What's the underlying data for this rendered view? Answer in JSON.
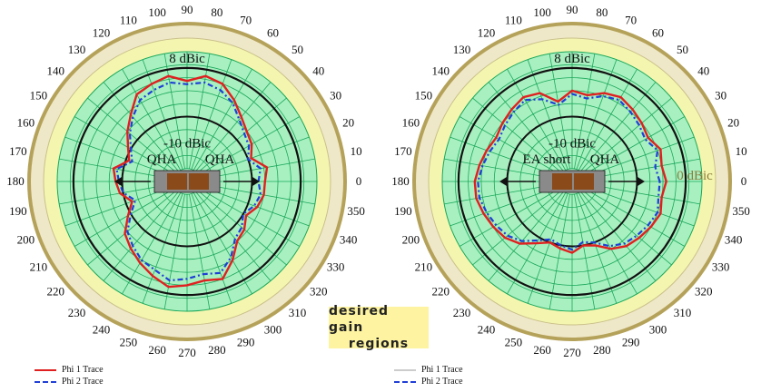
{
  "colors": {
    "outer_ring": "#b5a25a",
    "desired_region": "#f4f6b0",
    "polar_fill": "#a8f0c0",
    "grid": "#1aa85a",
    "reference_circle": "#111111",
    "phi1": "#e02020",
    "phi2": "#1f3fd6",
    "orange_trace": "#f08a30"
  },
  "callout": {
    "line1": "desired gain",
    "line2": "regions"
  },
  "chart_data": [
    {
      "type": "polar",
      "angle_labels": [
        "0",
        "10",
        "20",
        "30",
        "40",
        "50",
        "60",
        "70",
        "80",
        "90",
        "100",
        "110",
        "120",
        "130",
        "140",
        "150",
        "160",
        "170",
        "180",
        "190",
        "200",
        "210",
        "220",
        "230",
        "240",
        "250",
        "260",
        "270",
        "280",
        "290",
        "300",
        "310",
        "320",
        "330",
        "340",
        "350"
      ],
      "ring_labels": {
        "top": "8 dBic",
        "inner": "-10 dBic"
      },
      "antenna_labels": [
        "QHA",
        "QHA"
      ],
      "legend": [
        "Phi 1 Trace",
        "Phi 2 Trace"
      ],
      "series": [
        {
          "name": "Phi 1 Trace",
          "color": "#e02020",
          "angles": [
            0,
            10,
            20,
            30,
            40,
            50,
            60,
            70,
            80,
            90,
            100,
            110,
            120,
            130,
            140,
            150,
            160,
            170,
            180,
            190,
            200,
            210,
            220,
            230,
            240,
            250,
            260,
            270,
            280,
            290,
            300,
            310,
            320,
            330,
            340,
            350
          ],
          "values": [
            -6,
            -5,
            -9,
            -7,
            -6,
            -4,
            -1,
            2,
            3,
            1,
            3,
            2,
            1,
            -3,
            -6,
            -9,
            -11,
            -7,
            -8,
            -9,
            -12,
            -9,
            -5,
            -3,
            -1,
            1,
            3,
            2,
            1,
            2,
            -2,
            -6,
            -7,
            -9,
            -7,
            -6
          ]
        },
        {
          "name": "Phi 2 Trace",
          "color": "#1f3fd6",
          "angles": [
            0,
            10,
            20,
            30,
            40,
            50,
            60,
            70,
            80,
            90,
            100,
            110,
            120,
            130,
            140,
            150,
            160,
            170,
            180,
            190,
            200,
            210,
            220,
            230,
            240,
            250,
            260,
            270,
            280,
            290,
            300,
            310,
            320,
            330,
            340,
            350
          ],
          "values": [
            -8,
            -7,
            -10,
            -8,
            -7,
            -5,
            -2,
            0,
            1,
            0,
            1,
            0,
            -1,
            -4,
            -7,
            -10,
            -12,
            -8,
            -9,
            -10,
            -13,
            -10,
            -6,
            -4,
            -2,
            -1,
            1,
            0,
            -1,
            0,
            -3,
            -7,
            -8,
            -10,
            -8,
            -7
          ]
        }
      ]
    },
    {
      "type": "polar",
      "angle_labels": [
        "0",
        "10",
        "20",
        "30",
        "40",
        "50",
        "60",
        "70",
        "80",
        "90",
        "100",
        "110",
        "120",
        "130",
        "140",
        "150",
        "160",
        "170",
        "180",
        "190",
        "200",
        "210",
        "220",
        "230",
        "240",
        "250",
        "260",
        "270",
        "280",
        "290",
        "300",
        "310",
        "320",
        "330",
        "340",
        "350"
      ],
      "ring_labels": {
        "top": "8 dBic",
        "inner": "-10 dBic",
        "right": "0 dBic"
      },
      "antenna_labels": [
        "EA short",
        "QHA"
      ],
      "legend": [
        "Phi 1 Trace",
        "Phi 2 Trace"
      ],
      "series": [
        {
          "name": "Phi 1 Trace",
          "color": "#e02020",
          "angles": [
            0,
            10,
            20,
            30,
            40,
            50,
            60,
            70,
            80,
            90,
            100,
            110,
            120,
            130,
            140,
            150,
            160,
            170,
            180,
            190,
            200,
            210,
            220,
            230,
            240,
            250,
            260,
            270,
            280,
            290,
            300,
            310,
            320,
            330,
            340,
            350
          ],
          "values": [
            -1,
            -2,
            -1,
            -3,
            -2,
            -1,
            0,
            -1,
            -3,
            -2,
            -5,
            -1,
            0,
            -1,
            -2,
            -3,
            -2,
            -1,
            0,
            0,
            -1,
            -2,
            -3,
            -5,
            -8,
            -10,
            -9,
            -8,
            -10,
            -9,
            -6,
            -4,
            -3,
            -2,
            -1,
            -2
          ]
        },
        {
          "name": "Phi 2 Trace",
          "color": "#1f3fd6",
          "angles": [
            0,
            10,
            20,
            30,
            40,
            50,
            60,
            70,
            80,
            90,
            100,
            110,
            120,
            130,
            140,
            150,
            160,
            170,
            180,
            190,
            200,
            210,
            220,
            230,
            240,
            250,
            260,
            270,
            280,
            290,
            300,
            310,
            320,
            330,
            340,
            350
          ],
          "values": [
            -3,
            -4,
            -2,
            -4,
            -3,
            -2,
            -1,
            -2,
            -4,
            -3,
            -6,
            -3,
            -1,
            -2,
            -3,
            -4,
            -3,
            -2,
            -1,
            -1,
            -2,
            -3,
            -4,
            -6,
            -9,
            -11,
            -10,
            -9,
            -11,
            -10,
            -7,
            -5,
            -4,
            -3,
            -2,
            -3
          ]
        }
      ]
    }
  ]
}
